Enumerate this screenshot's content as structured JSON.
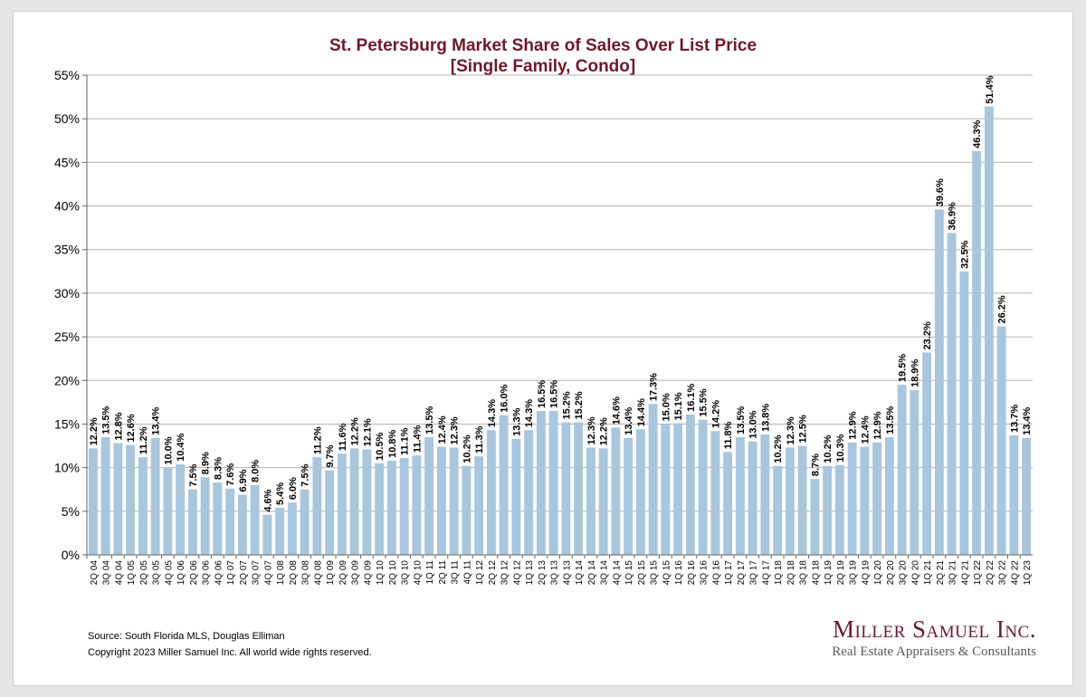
{
  "chart_data": {
    "type": "bar",
    "title": "St. Petersburg Market Share of Sales Over List Price",
    "subtitle": "[Single Family, Condo]",
    "xlabel": "",
    "ylabel": "",
    "ylim": [
      0,
      55
    ],
    "yticks": [
      "0%",
      "5%",
      "10%",
      "15%",
      "20%",
      "25%",
      "30%",
      "35%",
      "40%",
      "45%",
      "50%",
      "55%"
    ],
    "grid": true,
    "bar_color": "#a9c6dc",
    "categories": [
      "2Q 04",
      "3Q 04",
      "4Q 04",
      "1Q 05",
      "2Q 05",
      "3Q 05",
      "4Q 05",
      "1Q 06",
      "2Q 06",
      "3Q 06",
      "4Q 06",
      "1Q 07",
      "2Q 07",
      "3Q 07",
      "4Q 07",
      "1Q 08",
      "2Q 08",
      "3Q 08",
      "4Q 08",
      "1Q 09",
      "2Q 09",
      "3Q 09",
      "4Q 09",
      "1Q 10",
      "2Q 10",
      "3Q 10",
      "4Q 10",
      "1Q 11",
      "2Q 11",
      "3Q 11",
      "4Q 11",
      "1Q 12",
      "2Q 12",
      "3Q 12",
      "4Q 12",
      "1Q 13",
      "2Q 13",
      "3Q 13",
      "4Q 13",
      "1Q 14",
      "2Q 14",
      "3Q 14",
      "4Q 14",
      "1Q 15",
      "2Q 15",
      "3Q 15",
      "4Q 15",
      "1Q 16",
      "2Q 16",
      "3Q 16",
      "4Q 16",
      "1Q 17",
      "2Q 17",
      "3Q 17",
      "4Q 17",
      "1Q 18",
      "2Q 18",
      "3Q 18",
      "4Q 18",
      "1Q 19",
      "2Q 19",
      "3Q 19",
      "4Q 19",
      "1Q 20",
      "2Q 20",
      "3Q 20",
      "4Q 20",
      "1Q 21",
      "2Q 21",
      "3Q 21",
      "4Q 21",
      "1Q 22",
      "2Q 22",
      "3Q 22",
      "4Q 22",
      "1Q 23"
    ],
    "values": [
      12.2,
      13.5,
      12.8,
      12.6,
      11.2,
      13.4,
      10.0,
      10.4,
      7.5,
      8.9,
      8.3,
      7.6,
      6.9,
      8.0,
      4.6,
      5.4,
      6.0,
      7.5,
      11.2,
      9.7,
      11.6,
      12.2,
      12.1,
      10.5,
      10.8,
      11.1,
      11.4,
      13.5,
      12.4,
      12.3,
      10.2,
      11.3,
      14.3,
      16.0,
      13.3,
      14.3,
      16.5,
      16.5,
      15.2,
      15.2,
      12.3,
      12.2,
      14.6,
      13.4,
      14.4,
      17.3,
      15.0,
      15.1,
      16.1,
      15.5,
      14.2,
      11.8,
      13.5,
      13.0,
      13.8,
      10.2,
      12.3,
      12.5,
      8.7,
      10.2,
      10.3,
      12.9,
      12.4,
      12.9,
      13.5,
      19.5,
      18.9,
      23.2,
      39.6,
      36.9,
      32.5,
      46.3,
      51.4,
      26.2,
      13.7,
      13.4
    ],
    "value_labels": [
      "12.2%",
      "13.5%",
      "12.8%",
      "12.6%",
      "11.2%",
      "13.4%",
      "10.0%",
      "10.4%",
      "7.5%",
      "8.9%",
      "8.3%",
      "7.6%",
      "6.9%",
      "8.0%",
      "4.6%",
      "5.4%",
      "6.0%",
      "7.5%",
      "11.2%",
      "9.7%",
      "11.6%",
      "12.2%",
      "12.1%",
      "10.5%",
      "10.8%",
      "11.1%",
      "11.4%",
      "13.5%",
      "12.4%",
      "12.3%",
      "10.2%",
      "11.3%",
      "14.3%",
      "16.0%",
      "13.3%",
      "14.3%",
      "16.5%",
      "16.5%",
      "15.2%",
      "15.2%",
      "12.3%",
      "12.2%",
      "14.6%",
      "13.4%",
      "14.4%",
      "17.3%",
      "15.0%",
      "15.1%",
      "16.1%",
      "15.5%",
      "14.2%",
      "11.8%",
      "13.5%",
      "13.0%",
      "13.8%",
      "10.2%",
      "12.3%",
      "12.5%",
      "8.7%",
      "10.2%",
      "10.3%",
      "12.9%",
      "12.4%",
      "12.9%",
      "13.5%",
      "19.5%",
      "18.9%",
      "23.2%",
      "39.6%",
      "36.9%",
      "32.5%",
      "46.3%",
      "51.4%",
      "26.2%",
      "13.7%",
      "13.4%"
    ]
  },
  "footer": {
    "source": "Source: South Florida MLS, Douglas Elliman",
    "copyright": "Copyright 2023 Miller Samuel Inc.  All world wide rights reserved."
  },
  "logo": {
    "name": "Miller Samuel Inc.",
    "tagline": "Real Estate Appraisers & Consultants"
  }
}
